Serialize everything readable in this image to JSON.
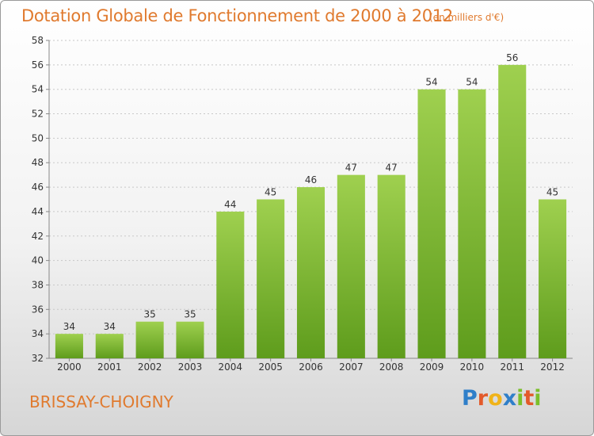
{
  "chart_data": {
    "type": "bar",
    "title": "Dotation Globale de Fonctionnement de 2000 à 2012",
    "subtitle": "(en milliers d'€)",
    "categories": [
      "2000",
      "2001",
      "2002",
      "2003",
      "2004",
      "2005",
      "2006",
      "2007",
      "2008",
      "2009",
      "2010",
      "2011",
      "2012"
    ],
    "values": [
      34,
      34,
      35,
      35,
      44,
      45,
      46,
      47,
      47,
      54,
      54,
      56,
      45
    ],
    "ylim": [
      32,
      58
    ],
    "yticks": [
      32,
      34,
      36,
      38,
      40,
      42,
      44,
      46,
      48,
      50,
      52,
      54,
      56,
      58
    ],
    "grid": true,
    "bar_color_top": "#9fd04f",
    "bar_color_bottom": "#5e9c1c"
  },
  "commune": "BRISSAY-CHOIGNY",
  "logo": {
    "letters": [
      "P",
      "r",
      "o",
      "x",
      "i",
      "t",
      "i"
    ]
  }
}
